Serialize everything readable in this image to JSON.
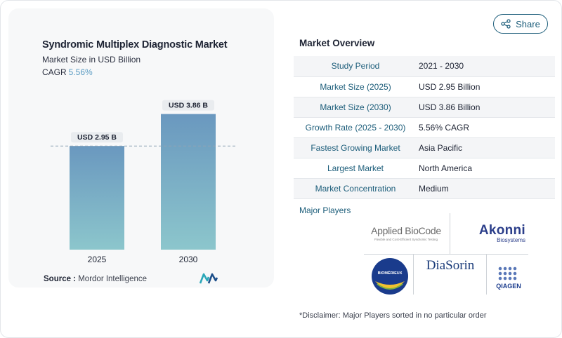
{
  "chart_data": {
    "type": "bar",
    "title": "Syndromic Multiplex Diagnostic Market",
    "subtitle": "Market Size in USD Billion",
    "cagr_label": "CAGR",
    "cagr_value": "5.56%",
    "categories": [
      "2025",
      "2030"
    ],
    "values": [
      2.95,
      3.86
    ],
    "data_labels": [
      "USD 2.95 B",
      "USD 3.86 B"
    ],
    "ylim": [
      0,
      4.75
    ],
    "grid": false,
    "reference_line_value": 2.95,
    "colors": {
      "bar_top": "#6a98bf",
      "bar_bottom": "#8cc6cc"
    }
  },
  "source": {
    "label": "Source :",
    "text": "Mordor Intelligence"
  },
  "share": {
    "label": "Share"
  },
  "overview": {
    "title": "Market Overview",
    "rows": [
      {
        "label": "Study Period",
        "value": "2021 - 2030"
      },
      {
        "label": "Market Size (2025)",
        "value": "USD 2.95 Billion"
      },
      {
        "label": "Market Size (2030)",
        "value": "USD 3.86 Billion"
      },
      {
        "label": "Growth Rate (2025 - 2030)",
        "value": "5.56% CAGR"
      },
      {
        "label": "Fastest Growing Market",
        "value": "Asia Pacific"
      },
      {
        "label": "Largest Market",
        "value": "North America"
      },
      {
        "label": "Market Concentration",
        "value": "Medium"
      }
    ]
  },
  "players": {
    "title": "Major Players",
    "logos": {
      "applied_biocode": {
        "name": "Applied BioCode",
        "tagline": "Flexible and Cost-Efficient Syndromic Testing"
      },
      "akonni": {
        "name": "Akonni",
        "sub": "Biosystems"
      },
      "biomerieux": {
        "name": "BIOMÉRIEUX"
      },
      "diasorin": {
        "name": "DiaSorin"
      },
      "qiagen": {
        "name": "QIAGEN"
      }
    }
  },
  "disclaimer": "*Disclaimer: Major Players sorted in no particular order"
}
